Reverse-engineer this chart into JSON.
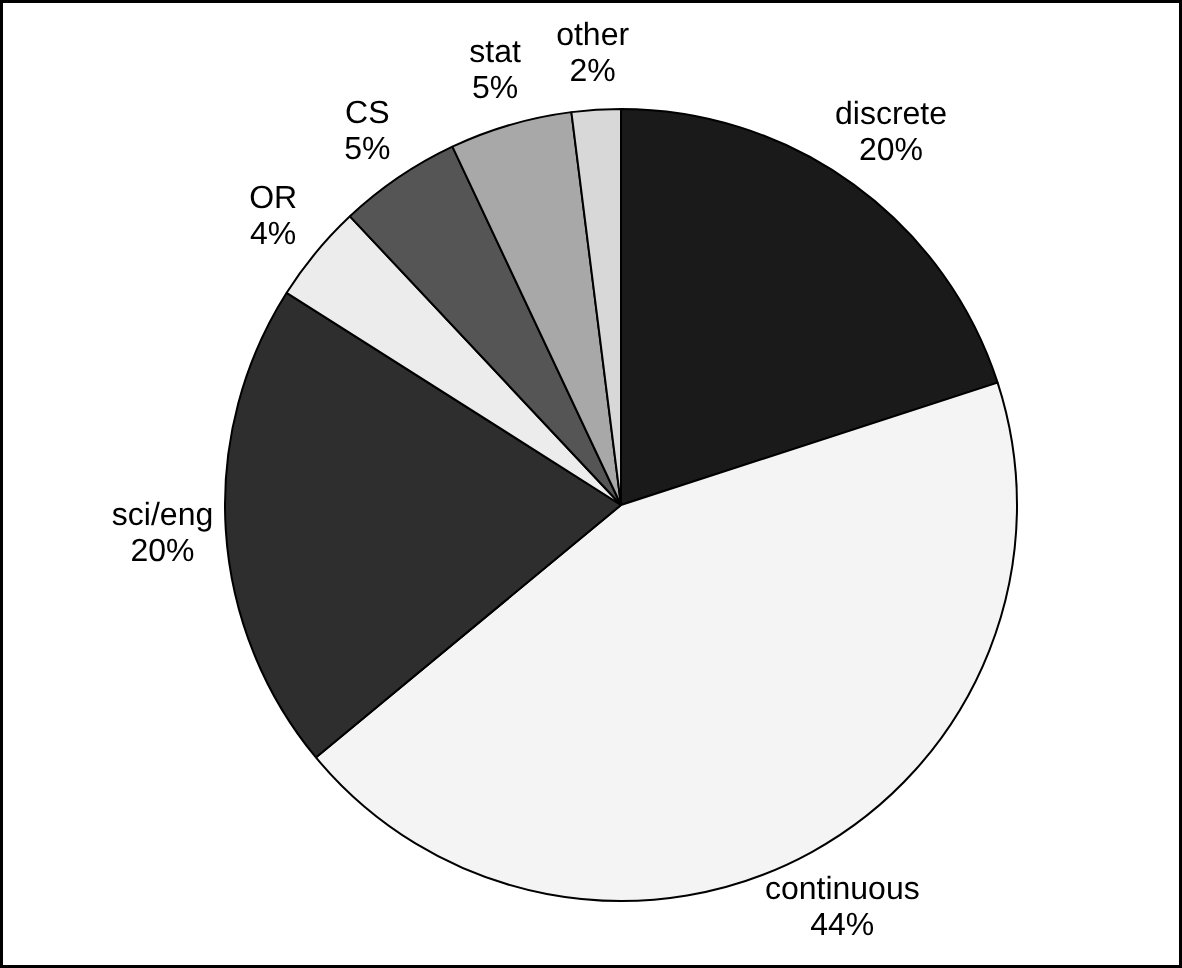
{
  "chart_data": {
    "type": "pie",
    "categories": [
      "discrete",
      "continuous",
      "sci/eng",
      "OR",
      "CS",
      "stat",
      "other"
    ],
    "values": [
      20,
      44,
      20,
      4,
      5,
      5,
      2
    ],
    "value_labels": [
      "20%",
      "44%",
      "20%",
      "4%",
      "5%",
      "5%",
      "2%"
    ],
    "colors": [
      "#1a1a1a",
      "#f4f4f4",
      "#2e2e2e",
      "#ececec",
      "#555555",
      "#a8a8a8",
      "#d8d8d8"
    ]
  }
}
